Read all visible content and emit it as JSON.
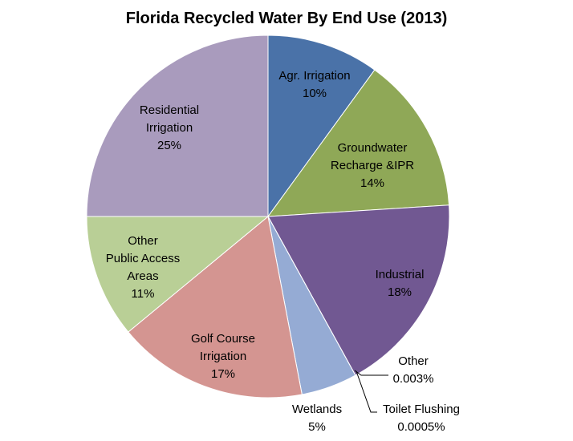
{
  "chart_data": {
    "type": "pie",
    "title": "Florida Recycled Water By End Use (2013)",
    "categories": [
      "Agr. Irrigation",
      "Groundwater\nRecharge &IPR",
      "Industrial",
      "Other",
      "Toilet Flushing",
      "Wetlands",
      "Golf Course\nIrrigation",
      "Other\nPublic Access\nAreas",
      "Residential\nIrrigation"
    ],
    "values": [
      10,
      14,
      18,
      0.003,
      0.0005,
      5,
      17,
      11,
      25
    ],
    "value_labels": [
      "10%",
      "14%",
      "18%",
      "0.003%",
      "0.0005%",
      "5%",
      "17%",
      "11%",
      "25%"
    ],
    "colors": [
      "#4a72a8",
      "#8fa857",
      "#715892",
      "#4bacc6",
      "#f79646",
      "#95abd4",
      "#d49591",
      "#b9cf96",
      "#a99bbd"
    ]
  }
}
